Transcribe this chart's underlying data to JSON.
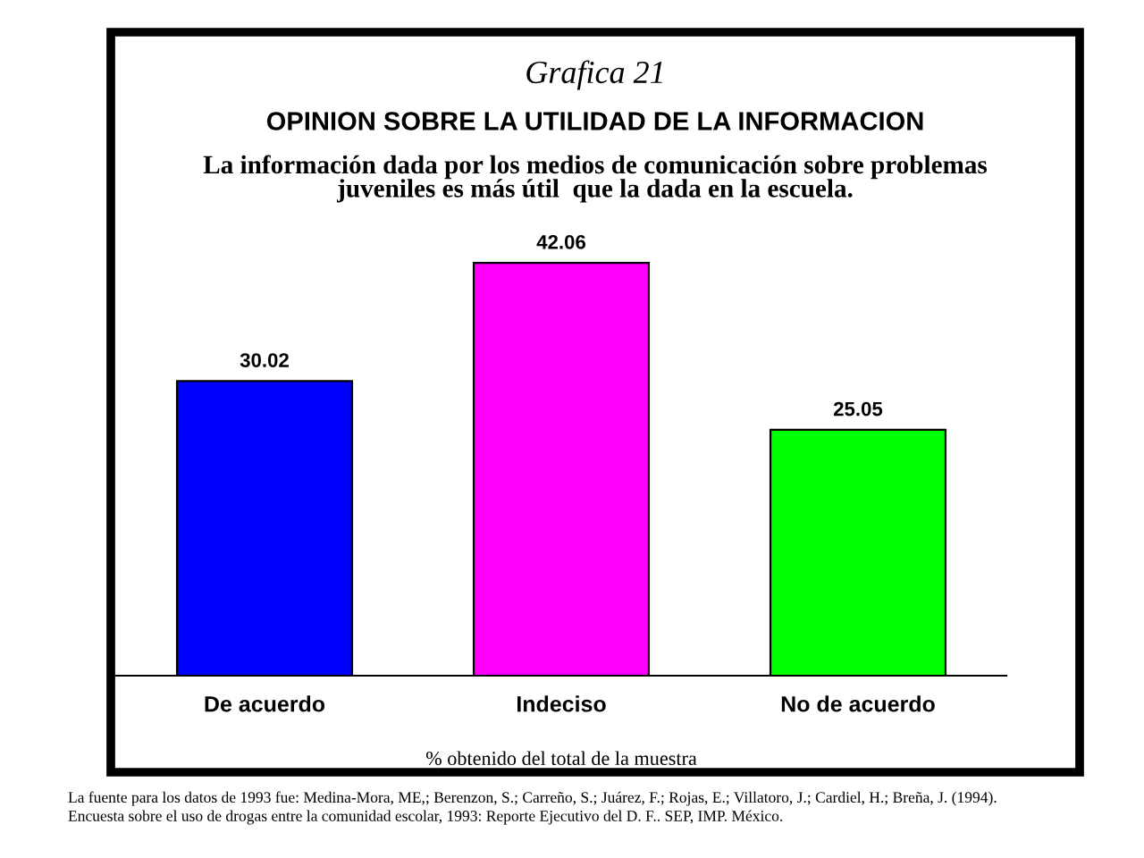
{
  "chart_data": {
    "type": "bar",
    "title": "Grafica 21",
    "subtitle": "OPINION SOBRE LA UTILIDAD DE LA INFORMACION",
    "annotations": [
      "La información dada por los medios de comunicación sobre problemas\njuveniles es más útil  que la dada en la escuela.",
      "La fuente para los datos de 1993 fue: Medina-Mora, ME,; Berenzon, S.; Carreño, S.; Juárez, F.; Rojas, E.; Villatoro, J.; Cardiel, H.; Breña, J. (1994).\nEncuesta sobre el uso de drogas entre la comunidad escolar, 1993: Reporte Ejecutivo del D. F.. SEP, IMP. México."
    ],
    "xlabel": "% obtenido del total de la muestra",
    "categories": [
      "De acuerdo",
      "Indeciso",
      "No de acuerdo"
    ],
    "values": [
      30.02,
      42.06,
      25.05
    ],
    "colors": [
      "#0000ff",
      "#ff00ff",
      "#00ff00"
    ],
    "data_labels": true
  }
}
